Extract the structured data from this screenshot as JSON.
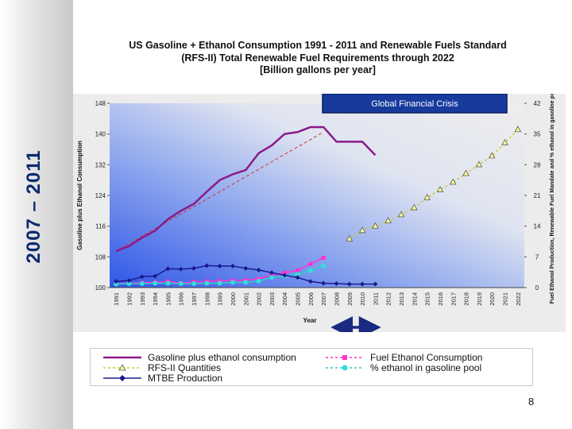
{
  "slide": {
    "side_label": "2007 – 2011",
    "page_number": "8"
  },
  "annotation": {
    "text": "Global Financial Crisis",
    "fill": "#173a9c",
    "border": "#0a1f5c"
  },
  "chart_data": {
    "type": "line",
    "title_lines": [
      "US Gasoline + Ethanol Consumption 1991 - 2011 and Renewable Fuels Standard",
      "(RFS-II) Total Renewable Fuel Requirements through 2022",
      "[Billion gallons per year]"
    ],
    "xlabel": "Year",
    "ylabel_left": "Gasoline plus Ethanol Consumption",
    "ylabel_right": "Fuel Ethanol Production, Renewable Fuel Mandate and % ethanol in gasoline pool",
    "categories": [
      "1991",
      "1992",
      "1993",
      "1994",
      "1995",
      "1996",
      "1997",
      "1998",
      "1999",
      "2000",
      "2001",
      "2002",
      "2003",
      "2004",
      "2005",
      "2006",
      "2007",
      "2008",
      "2009",
      "2010",
      "2011",
      "2012",
      "2013",
      "2014",
      "2015",
      "2016",
      "2017",
      "2018",
      "2019",
      "2020",
      "2021",
      "2022"
    ],
    "ylim_left": [
      100,
      148
    ],
    "yticks_left": [
      "100",
      "108",
      "116",
      "124",
      "132",
      "140",
      "148"
    ],
    "ylim_right": [
      0,
      42
    ],
    "yticks_right": [
      "0",
      "7",
      "14",
      "21",
      "28",
      "35",
      "42"
    ],
    "grid": false,
    "legend_position": "bottom",
    "series": [
      {
        "name": "Gasoline plus ethanol consumption",
        "axis": "left",
        "color": "#8b1a8b",
        "marker": "none",
        "values": [
          109.5,
          110.8,
          113,
          114.8,
          117.8,
          120,
          121.8,
          125,
          128,
          129.5,
          130.6,
          135,
          137,
          140,
          140.5,
          141.8,
          141.8,
          138,
          138,
          138,
          134.5,
          null,
          null,
          null,
          null,
          null,
          null,
          null,
          null,
          null,
          null,
          null
        ]
      },
      {
        "name": "Fuel Ethanol Consumption",
        "axis": "right",
        "color": "#ff33cc",
        "marker": "square",
        "values": [
          0.9,
          1.0,
          1.1,
          1.2,
          1.4,
          1.0,
          1.3,
          1.4,
          1.5,
          1.6,
          1.7,
          2.0,
          2.8,
          3.4,
          3.9,
          5.4,
          6.8,
          null,
          null,
          null,
          null,
          null,
          null,
          null,
          null,
          null,
          null,
          null,
          null,
          null,
          null,
          null
        ]
      },
      {
        "name": "RFS-II Quantities",
        "axis": "right",
        "color": "#cccc33",
        "marker": "triangle",
        "values": [
          null,
          null,
          null,
          null,
          null,
          null,
          null,
          null,
          null,
          null,
          null,
          null,
          null,
          null,
          null,
          null,
          null,
          null,
          11.1,
          13,
          14,
          15.2,
          16.6,
          18.2,
          20.5,
          22.3,
          24,
          26,
          28,
          30,
          33,
          36
        ]
      },
      {
        "name": "% ethanol in gasoline pool",
        "axis": "right",
        "color": "#33cccc",
        "marker": "circle",
        "values": [
          0.8,
          0.9,
          0.9,
          1.0,
          1.0,
          0.9,
          0.9,
          1.0,
          1.0,
          1.2,
          1.2,
          1.5,
          2.3,
          2.6,
          3.0,
          3.9,
          4.9,
          null,
          null,
          null,
          null,
          null,
          null,
          null,
          null,
          null,
          null,
          null,
          null,
          null,
          null,
          null
        ]
      },
      {
        "name": "MTBE Production",
        "axis": "right",
        "color": "#1a1a8c",
        "marker": "diamond",
        "values": [
          1.4,
          1.6,
          2.5,
          2.6,
          4.3,
          4.2,
          4.4,
          5.0,
          4.9,
          4.9,
          4.4,
          4.0,
          3.4,
          2.8,
          2.3,
          1.4,
          1.0,
          0.9,
          0.8,
          0.8,
          0.8,
          null,
          null,
          null,
          null,
          null,
          null,
          null,
          null,
          null,
          null,
          null
        ]
      }
    ],
    "trend_line": {
      "color": "#cc3333",
      "from": {
        "x": "1991",
        "y": 109.5
      },
      "to": {
        "x": "2007",
        "y": 140.5
      }
    },
    "highlight_range": {
      "from": "2008",
      "to": "2011",
      "color": "#1a2a80"
    }
  }
}
